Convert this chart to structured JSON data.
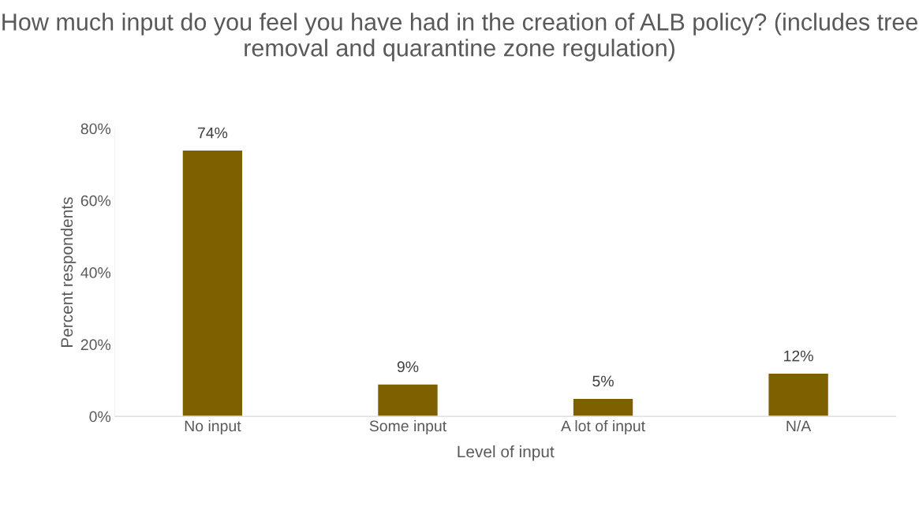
{
  "chart_data": {
    "type": "bar",
    "title": "How much input do you feel you have had in the creation of ALB policy? (includes tree removal and quarantine zone regulation)",
    "xlabel": "Level of input",
    "ylabel": "Percent respondents",
    "categories": [
      "No input",
      "Some input",
      "A lot of input",
      "N/A"
    ],
    "values": [
      74,
      9,
      5,
      12
    ],
    "value_labels": [
      "74%",
      "9%",
      "5%",
      "12%"
    ],
    "color": "#7f6000",
    "ylim": [
      0,
      80
    ],
    "yticks": [
      {
        "value": 0,
        "label": "0%"
      },
      {
        "value": 20,
        "label": "20%"
      },
      {
        "value": 40,
        "label": "40%"
      },
      {
        "value": 60,
        "label": "60%"
      },
      {
        "value": 80,
        "label": "80%"
      }
    ],
    "grid": false,
    "legend": false
  }
}
